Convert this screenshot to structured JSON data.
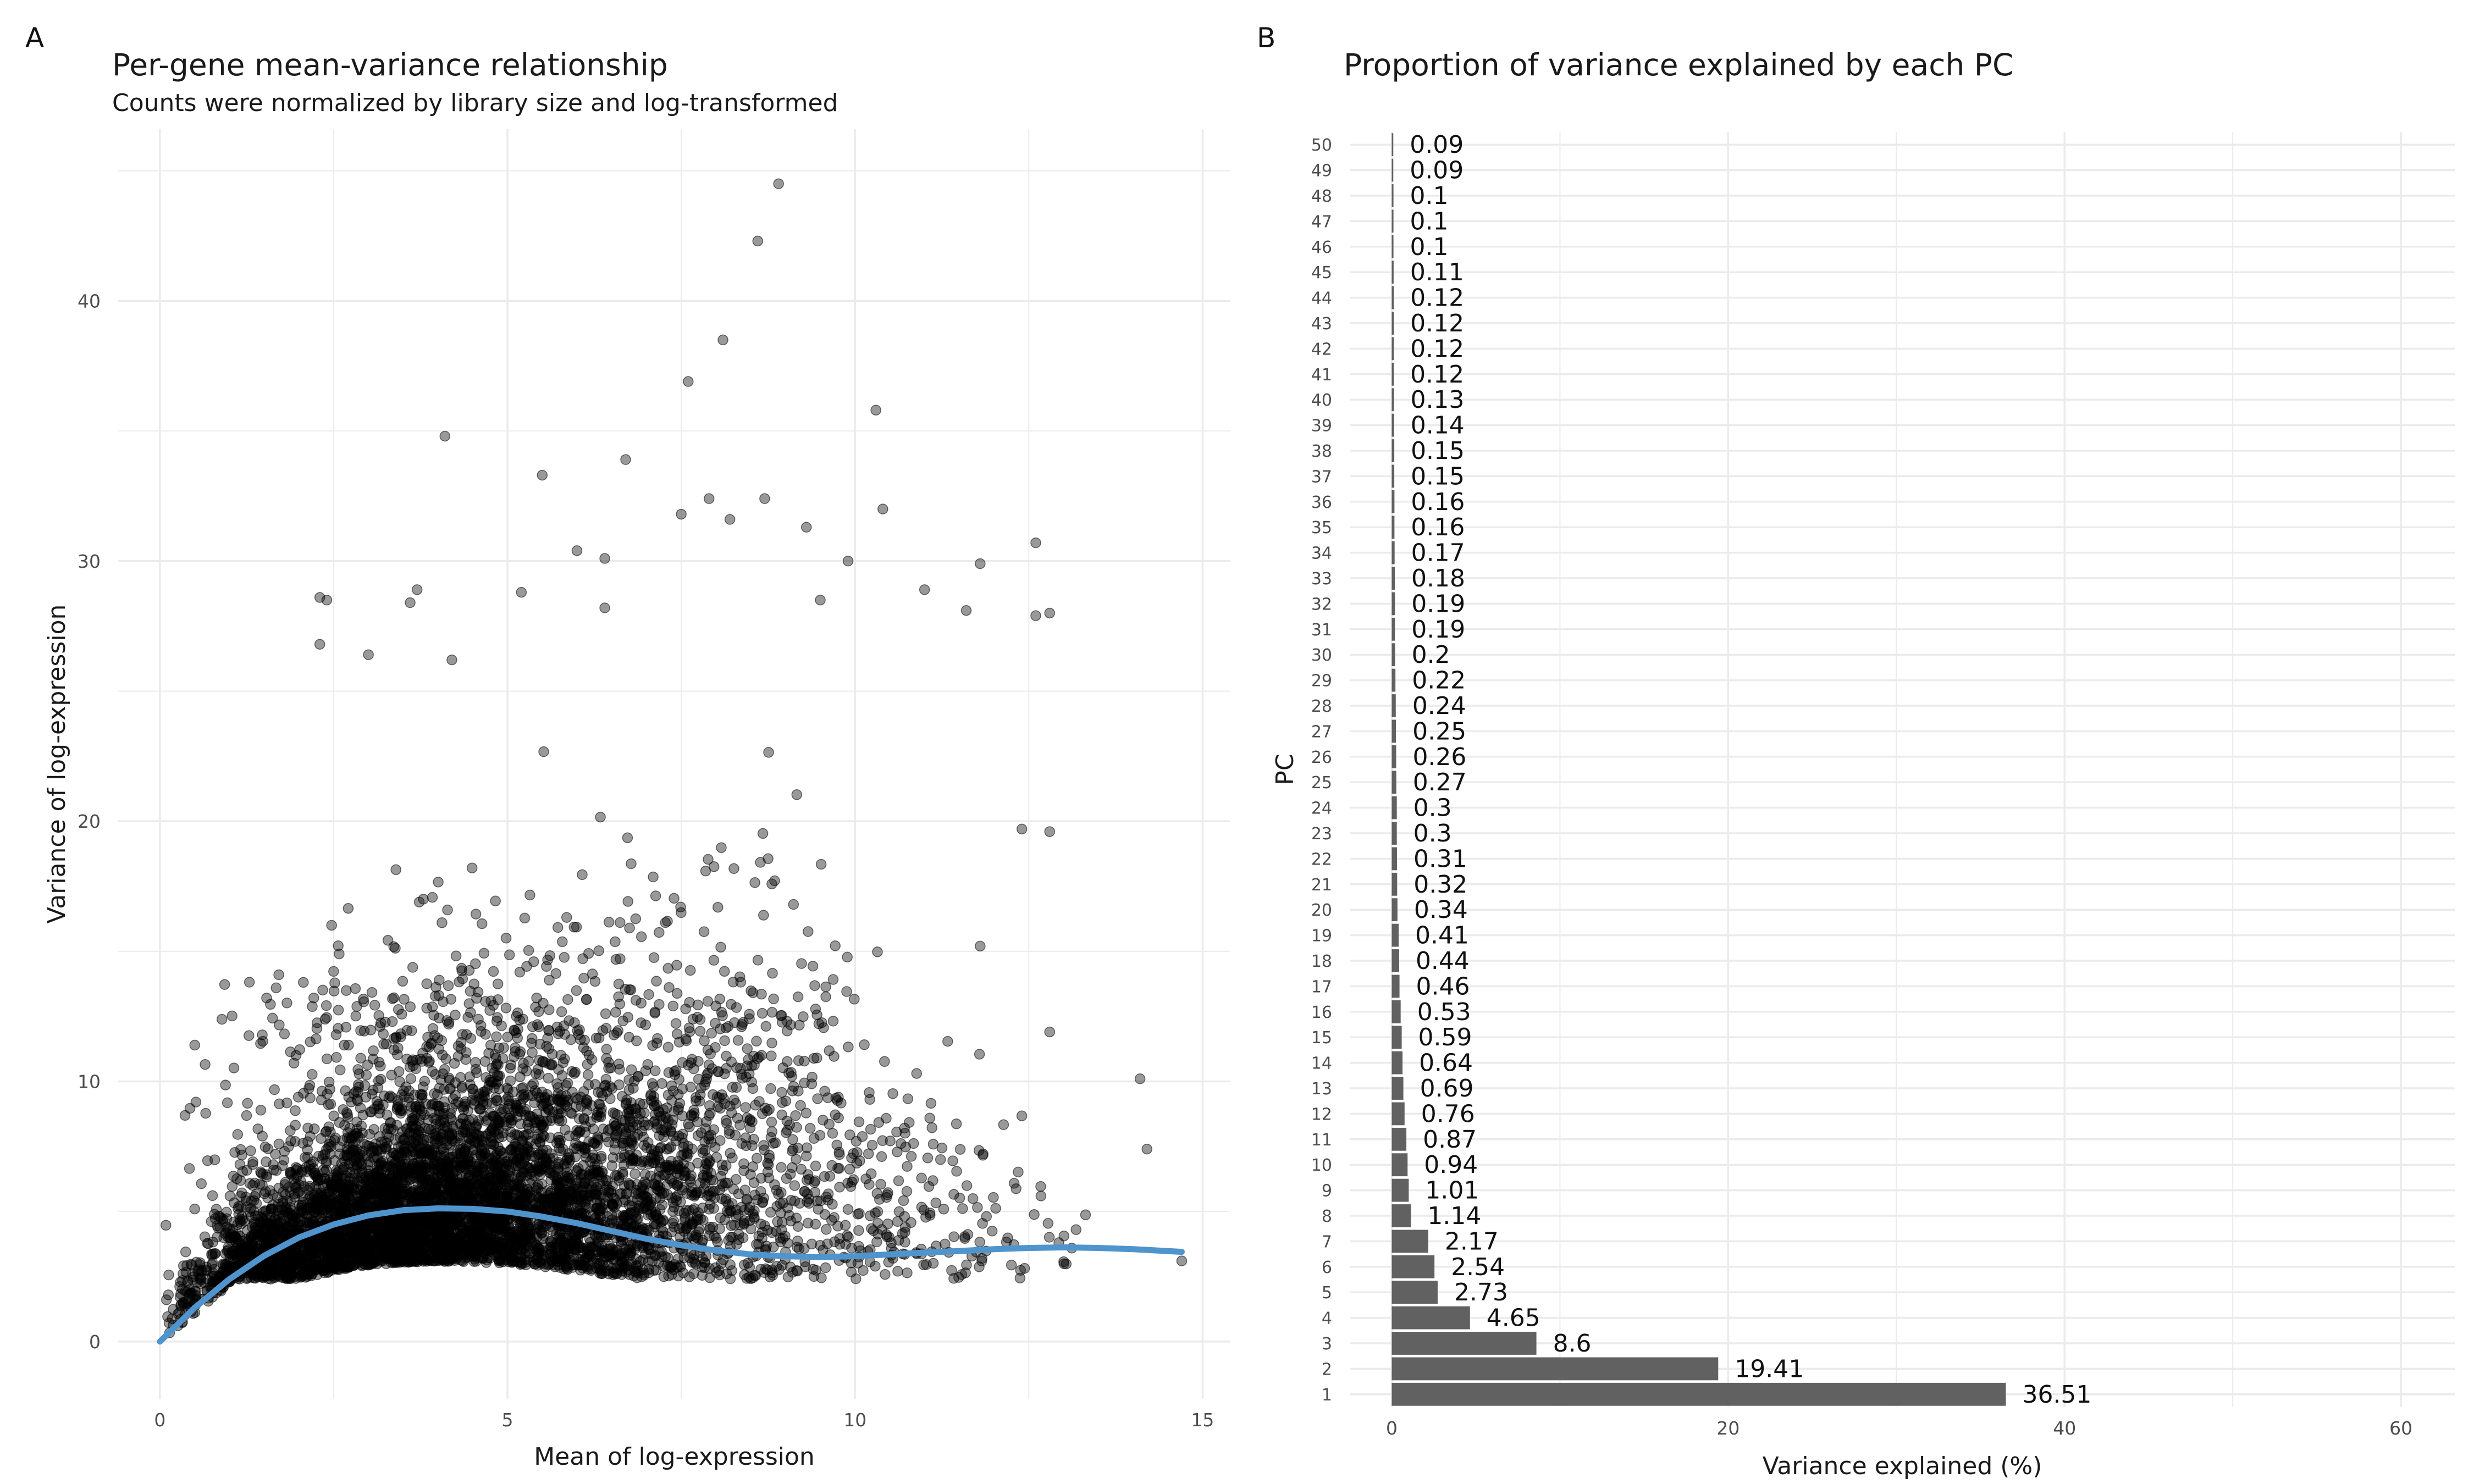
{
  "panels": {
    "a": {
      "letter": "A",
      "title": "Per-gene mean-variance relationship",
      "subtitle": "Counts were normalized by library size and log-transformed"
    },
    "b": {
      "letter": "B",
      "title": "Proportion of variance explained by each PC"
    }
  },
  "colors": {
    "points": "#000000",
    "trend": "#4f94cd",
    "bars": "#616161",
    "grid": "#ebebeb"
  },
  "chart_data": [
    {
      "type": "scatter",
      "title": "Per-gene mean-variance relationship",
      "subtitle": "Counts were normalized by library size and log-transformed",
      "xlabel": "Mean of log-expression",
      "ylabel": "Variance of log-expression",
      "xlim": [
        -0.6,
        15.4
      ],
      "ylim": [
        -2.2,
        46.6
      ],
      "xticks": [
        0,
        5,
        10,
        15
      ],
      "yticks": [
        0,
        10,
        20,
        30,
        40
      ],
      "grid": true,
      "point_style": "semi-transparent black dots (dense cloud of genes)",
      "trend_line": {
        "style": "smoothed fit",
        "x": [
          0,
          0.5,
          1,
          1.5,
          2,
          2.5,
          3,
          3.5,
          4,
          4.5,
          5,
          5.5,
          6,
          6.5,
          7,
          7.5,
          8,
          8.5,
          9,
          9.5,
          10,
          10.5,
          11,
          11.5,
          12,
          12.5,
          13,
          13.5,
          14,
          14.7
        ],
        "y": [
          0,
          1.3,
          2.4,
          3.3,
          4.0,
          4.5,
          4.85,
          5.05,
          5.12,
          5.1,
          5.0,
          4.8,
          4.55,
          4.25,
          3.95,
          3.7,
          3.5,
          3.35,
          3.28,
          3.25,
          3.28,
          3.35,
          3.42,
          3.48,
          3.55,
          3.6,
          3.62,
          3.6,
          3.55,
          3.45
        ]
      },
      "outlier_points": [
        {
          "x": 8.9,
          "y": 44.5
        },
        {
          "x": 8.6,
          "y": 42.3
        },
        {
          "x": 8.1,
          "y": 38.5
        },
        {
          "x": 7.6,
          "y": 36.9
        },
        {
          "x": 10.3,
          "y": 35.8
        },
        {
          "x": 4.1,
          "y": 34.8
        },
        {
          "x": 6.7,
          "y": 33.9
        },
        {
          "x": 5.5,
          "y": 33.3
        },
        {
          "x": 8.7,
          "y": 32.4
        },
        {
          "x": 7.9,
          "y": 32.4
        },
        {
          "x": 10.4,
          "y": 32.0
        },
        {
          "x": 7.5,
          "y": 31.8
        },
        {
          "x": 8.2,
          "y": 31.6
        },
        {
          "x": 9.3,
          "y": 31.3
        },
        {
          "x": 12.6,
          "y": 30.7
        },
        {
          "x": 6.0,
          "y": 30.4
        },
        {
          "x": 6.4,
          "y": 30.1
        },
        {
          "x": 9.9,
          "y": 30.0
        },
        {
          "x": 11.8,
          "y": 29.9
        },
        {
          "x": 3.7,
          "y": 28.9
        },
        {
          "x": 5.2,
          "y": 28.8
        },
        {
          "x": 11.0,
          "y": 28.9
        },
        {
          "x": 2.3,
          "y": 28.6
        },
        {
          "x": 2.4,
          "y": 28.5
        },
        {
          "x": 3.6,
          "y": 28.4
        },
        {
          "x": 6.4,
          "y": 28.2
        },
        {
          "x": 11.6,
          "y": 28.1
        },
        {
          "x": 12.6,
          "y": 27.9
        },
        {
          "x": 12.8,
          "y": 28.0
        },
        {
          "x": 9.5,
          "y": 28.5
        },
        {
          "x": 2.3,
          "y": 26.8
        },
        {
          "x": 3.0,
          "y": 26.4
        },
        {
          "x": 4.2,
          "y": 26.2
        },
        {
          "x": 12.8,
          "y": 19.6
        },
        {
          "x": 12.4,
          "y": 19.7
        },
        {
          "x": 11.8,
          "y": 15.2
        },
        {
          "x": 12.8,
          "y": 11.9
        },
        {
          "x": 14.1,
          "y": 10.1
        },
        {
          "x": 14.2,
          "y": 7.4
        },
        {
          "x": 14.7,
          "y": 3.1
        }
      ]
    },
    {
      "type": "bar",
      "orientation": "horizontal",
      "title": "Proportion of variance explained by each PC",
      "xlabel": "Variance explained (%)",
      "ylabel": "PC",
      "xlim": [
        -2.5,
        63.2
      ],
      "xticks": [
        0,
        20,
        40,
        60
      ],
      "grid": true,
      "categories": [
        "1",
        "2",
        "3",
        "4",
        "5",
        "6",
        "7",
        "8",
        "9",
        "10",
        "11",
        "12",
        "13",
        "14",
        "15",
        "16",
        "17",
        "18",
        "19",
        "20",
        "21",
        "22",
        "23",
        "24",
        "25",
        "26",
        "27",
        "28",
        "29",
        "30",
        "31",
        "32",
        "33",
        "34",
        "35",
        "36",
        "37",
        "38",
        "39",
        "40",
        "41",
        "42",
        "43",
        "44",
        "45",
        "46",
        "47",
        "48",
        "49",
        "50"
      ],
      "values": [
        36.51,
        19.41,
        8.6,
        4.65,
        2.73,
        2.54,
        2.17,
        1.14,
        1.01,
        0.94,
        0.87,
        0.76,
        0.69,
        0.64,
        0.59,
        0.53,
        0.46,
        0.44,
        0.41,
        0.34,
        0.32,
        0.31,
        0.3,
        0.3,
        0.27,
        0.26,
        0.25,
        0.24,
        0.22,
        0.2,
        0.19,
        0.19,
        0.18,
        0.17,
        0.16,
        0.16,
        0.15,
        0.15,
        0.14,
        0.13,
        0.12,
        0.12,
        0.12,
        0.12,
        0.11,
        0.1,
        0.1,
        0.1,
        0.09,
        0.09
      ],
      "labels": [
        "36.51",
        "19.41",
        "8.6",
        "4.65",
        "2.73",
        "2.54",
        "2.17",
        "1.14",
        "1.01",
        "0.94",
        "0.87",
        "0.76",
        "0.69",
        "0.64",
        "0.59",
        "0.53",
        "0.46",
        "0.44",
        "0.41",
        "0.34",
        "0.32",
        "0.31",
        "0.3",
        "0.3",
        "0.27",
        "0.26",
        "0.25",
        "0.24",
        "0.22",
        "0.2",
        "0.19",
        "0.19",
        "0.18",
        "0.17",
        "0.16",
        "0.16",
        "0.15",
        "0.15",
        "0.14",
        "0.13",
        "0.12",
        "0.12",
        "0.12",
        "0.12",
        "0.11",
        "0.1",
        "0.1",
        "0.1",
        "0.09",
        "0.09"
      ]
    }
  ]
}
